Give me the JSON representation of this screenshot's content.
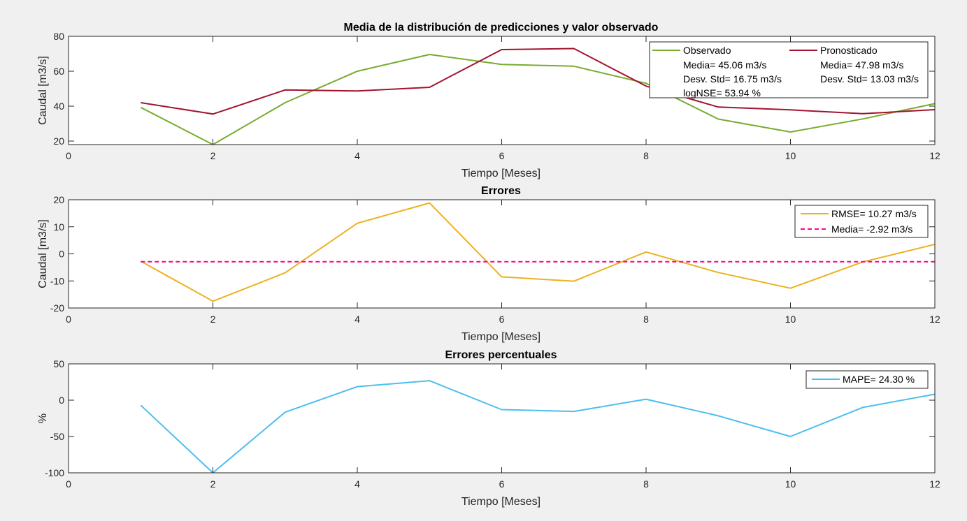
{
  "figure": {
    "background": "#f0f0f0"
  },
  "chart_data": [
    {
      "type": "line",
      "title": "Media de la distribución de predicciones y valor observado",
      "xlabel": "Tiempo [Meses]",
      "ylabel": "Caudal [m3/s]",
      "xlim": [
        0,
        12
      ],
      "ylim": [
        18,
        80
      ],
      "xticks": [
        0,
        2,
        4,
        6,
        8,
        10,
        12
      ],
      "yticks": [
        20,
        40,
        60,
        80
      ],
      "grid": false,
      "legend_position": "top-right",
      "series": [
        {
          "name": "Observado",
          "color": "#77ac30",
          "dash": "solid",
          "x": [
            1,
            2,
            3,
            4,
            5,
            6,
            7,
            8,
            9,
            10,
            11,
            12
          ],
          "y": [
            39.3,
            18.0,
            42.0,
            60.0,
            69.6,
            63.9,
            62.9,
            53.1,
            32.6,
            25.2,
            32.7,
            41.5
          ]
        },
        {
          "name": "Pronosticado",
          "color": "#a2142f",
          "dash": "solid",
          "x": [
            1,
            2,
            3,
            4,
            5,
            6,
            7,
            8,
            9,
            10,
            11,
            12
          ],
          "y": [
            42.0,
            35.5,
            49.3,
            48.7,
            50.8,
            72.4,
            73.0,
            51.5,
            39.5,
            37.9,
            35.7,
            38.0
          ]
        }
      ],
      "legend": {
        "columns": [
          {
            "series_index": 0,
            "label": "Observado",
            "lines": [
              "Media= 45.06 m3/s",
              "Desv. Std= 16.75 m3/s",
              "logNSE= 53.94 %"
            ]
          },
          {
            "series_index": 1,
            "label": "Pronosticado",
            "lines": [
              "Media= 47.98 m3/s",
              "Desv. Std= 13.03 m3/s"
            ]
          }
        ]
      }
    },
    {
      "type": "line",
      "title": "Errores",
      "xlabel": "Tiempo [Meses]",
      "ylabel": "Caudal [m3/s]",
      "xlim": [
        0,
        12
      ],
      "ylim": [
        -20,
        20
      ],
      "xticks": [
        0,
        2,
        4,
        6,
        8,
        10,
        12
      ],
      "yticks": [
        -20,
        -10,
        0,
        10,
        20
      ],
      "grid": false,
      "legend_position": "top-right",
      "series": [
        {
          "name": "RMSE= 10.27 m3/s",
          "color": "#edb120",
          "dash": "solid",
          "x": [
            1,
            2,
            3,
            4,
            5,
            6,
            7,
            8,
            9,
            10,
            11,
            12
          ],
          "y": [
            -2.7,
            -17.5,
            -7.0,
            11.3,
            18.8,
            -8.5,
            -10.1,
            0.7,
            -6.9,
            -12.7,
            -3.0,
            3.5
          ]
        },
        {
          "name": "Media= -2.92 m3/s",
          "color": "#ff0090",
          "dash": "dashed",
          "x": [
            1,
            12
          ],
          "y": [
            -2.92,
            -2.92
          ]
        }
      ]
    },
    {
      "type": "line",
      "title": "Errores percentuales",
      "xlabel": "Tiempo [Meses]",
      "ylabel": "%",
      "xlim": [
        0,
        12
      ],
      "ylim": [
        -100,
        50
      ],
      "xticks": [
        0,
        2,
        4,
        6,
        8,
        10,
        12
      ],
      "yticks": [
        -100,
        -50,
        0,
        50
      ],
      "grid": false,
      "legend_position": "top-right",
      "series": [
        {
          "name": "MAPE= 24.30 %",
          "color": "#4dbeee",
          "dash": "solid",
          "x": [
            1,
            2,
            3,
            4,
            5,
            6,
            7,
            8,
            9,
            10,
            11,
            12
          ],
          "y": [
            -7.0,
            -100.0,
            -16.5,
            18.7,
            26.8,
            -13.0,
            -15.5,
            1.3,
            -21.5,
            -50.0,
            -10.0,
            8.2
          ]
        }
      ]
    }
  ]
}
